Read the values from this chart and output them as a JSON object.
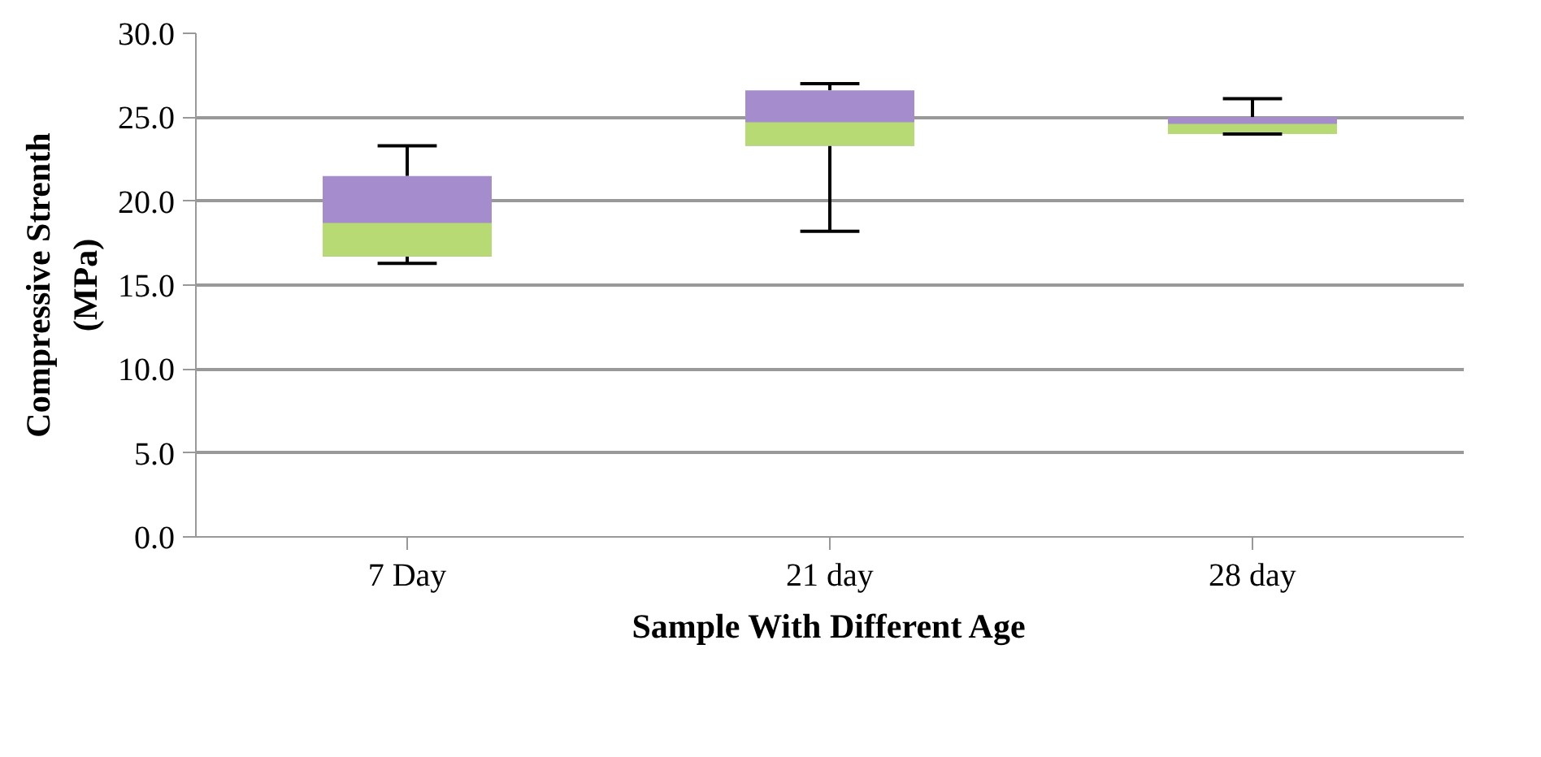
{
  "chart_data": {
    "type": "box",
    "xlabel": "Sample With Different Age",
    "ylabel": "Compressive Strenth\n(MPa)",
    "categories": [
      "7 Day",
      "21 day",
      "28 day"
    ],
    "boxes": [
      {
        "low": 16.3,
        "q1": 16.7,
        "median": 18.7,
        "q3": 21.5,
        "high": 23.3
      },
      {
        "low": 18.2,
        "q1": 23.3,
        "median": 24.7,
        "q3": 26.6,
        "high": 27.0
      },
      {
        "low": 24.0,
        "q1": 24.0,
        "median": 24.6,
        "q3": 25.0,
        "high": 26.1
      }
    ],
    "colors": [
      "#a48ccd",
      "#a48ccd",
      "#a48ccd"
    ],
    "ylim": [
      0,
      30
    ],
    "yticks": [
      {
        "value": 0,
        "label": "0.0"
      },
      {
        "value": 5,
        "label": "5.0"
      },
      {
        "value": 10,
        "label": "10.0"
      },
      {
        "value": 15,
        "label": "15.0"
      },
      {
        "value": 20,
        "label": "20.0"
      },
      {
        "value": 25,
        "label": "25.0"
      },
      {
        "value": 30,
        "label": "30.0"
      }
    ],
    "grid": "y"
  }
}
